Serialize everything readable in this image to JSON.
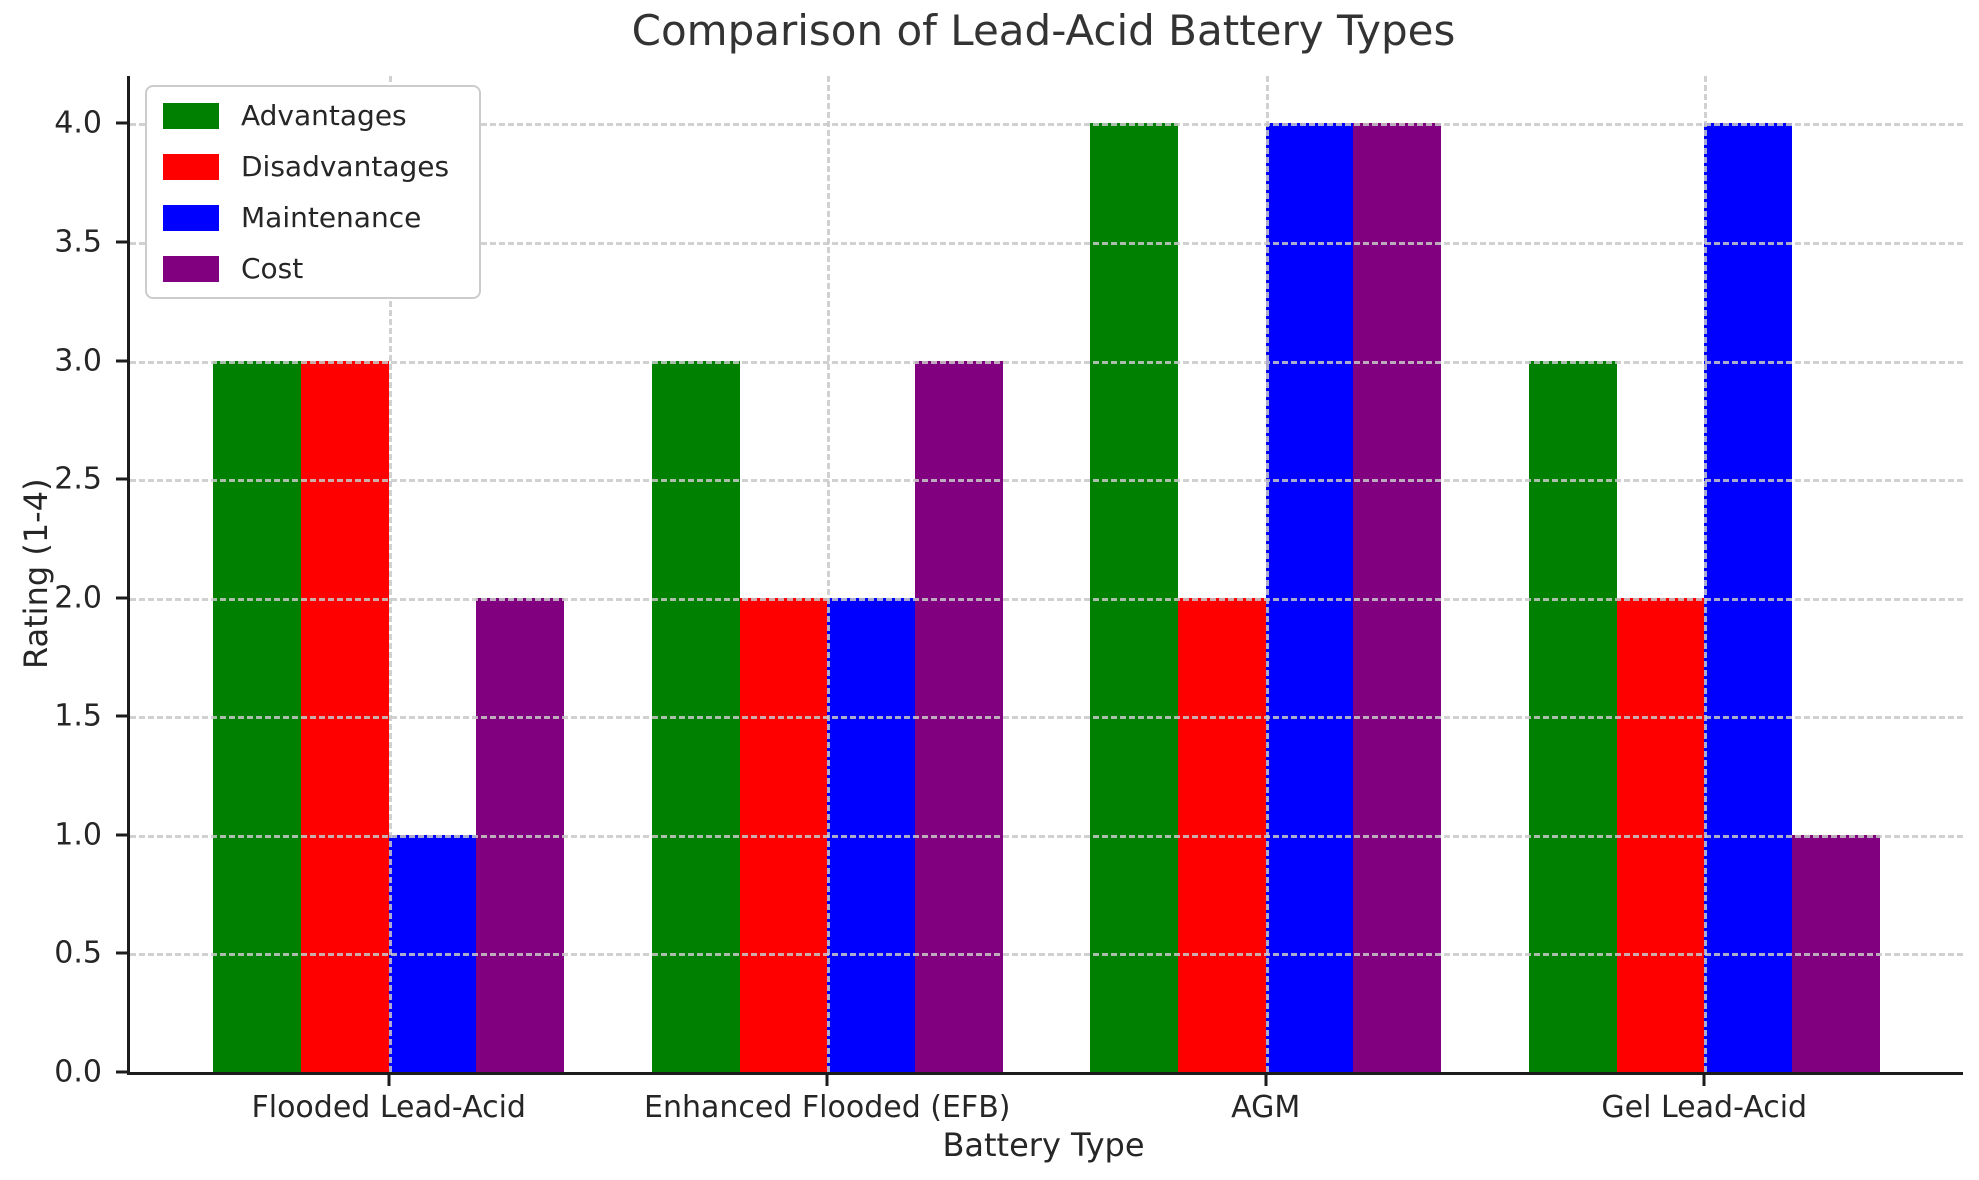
{
  "chart_data": {
    "type": "bar",
    "title": "Comparison of Lead-Acid Battery Types",
    "xlabel": "Battery Type",
    "ylabel": "Rating (1-4)",
    "categories": [
      "Flooded Lead-Acid",
      "Enhanced Flooded (EFB)",
      "AGM",
      "Gel Lead-Acid"
    ],
    "series": [
      {
        "name": "Advantages",
        "color": "#008000",
        "values": [
          3,
          3,
          4,
          3
        ]
      },
      {
        "name": "Disadvantages",
        "color": "#ff0000",
        "values": [
          3,
          2,
          2,
          2
        ]
      },
      {
        "name": "Maintenance",
        "color": "#0000ff",
        "values": [
          1,
          2,
          4,
          4
        ]
      },
      {
        "name": "Cost",
        "color": "#800080",
        "values": [
          2,
          3,
          4,
          1
        ]
      }
    ],
    "ylim": [
      0,
      4.2
    ],
    "yticks": [
      "0.0",
      "0.5",
      "1.0",
      "1.5",
      "2.0",
      "2.5",
      "3.0",
      "3.5",
      "4.0"
    ],
    "grid": "dashed horizontal every 0.5 and vertical at category centers, drawn above bars",
    "legend": {
      "position": "upper left",
      "entries": [
        "Advantages",
        "Disadvantages",
        "Maintenance",
        "Cost"
      ]
    },
    "background_color": "#ffffff",
    "gridline_color": "#c9c9c9",
    "spine_color": "#1c1c1c"
  }
}
